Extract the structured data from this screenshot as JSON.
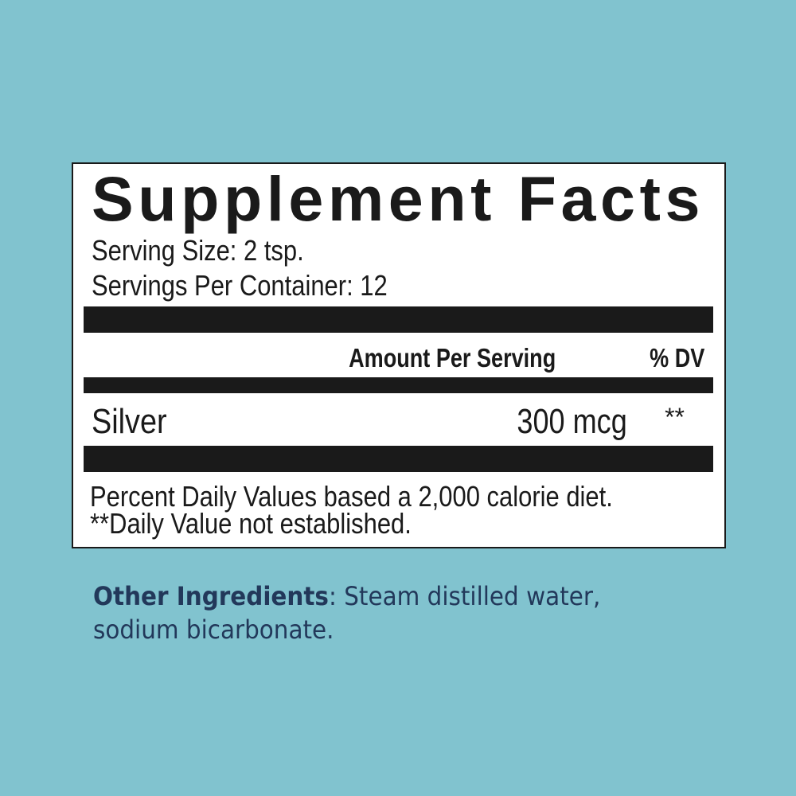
{
  "label": {
    "title": "Supplement Facts",
    "serving_size": "Serving Size: 2 tsp.",
    "servings_per_container": "Servings Per Container: 12",
    "columns": {
      "amount": "Amount Per Serving",
      "dv": "% DV"
    },
    "rows": [
      {
        "name": "Silver",
        "amount": "300 mcg",
        "dv": "**"
      }
    ],
    "footnotes": [
      "Percent Daily Values based a 2,000 calorie diet.",
      "**Daily Value not established."
    ]
  },
  "other_ingredients": {
    "label": "Other Ingredients",
    "separator": ": ",
    "line1": "Steam distilled water,",
    "line2": "sodium bicarbonate."
  },
  "colors": {
    "background": "#81c3cf",
    "ingredients_text": "#22385a",
    "ink": "#1a1a1a"
  }
}
